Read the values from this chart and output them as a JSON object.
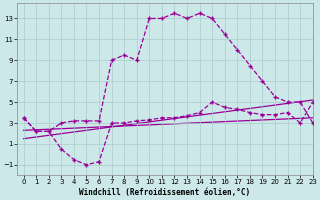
{
  "line1_x": [
    0,
    1,
    2,
    3,
    4,
    5,
    6,
    7,
    8,
    9,
    10,
    11,
    12,
    13,
    14,
    15,
    16,
    17,
    18,
    19,
    20,
    21,
    22,
    23
  ],
  "line1_y": [
    3.5,
    2.2,
    2.2,
    3.0,
    3.2,
    3.2,
    3.2,
    9.0,
    9.5,
    9.0,
    13.0,
    13.0,
    13.5,
    13.0,
    13.5,
    13.0,
    11.5,
    10.0,
    8.5,
    7.0,
    5.5,
    5.0,
    5.0,
    3.0
  ],
  "line2_x": [
    0,
    1,
    2,
    3,
    4,
    5,
    6,
    7,
    8,
    9,
    10,
    11,
    12,
    13,
    14,
    15,
    16,
    17,
    18,
    19,
    20,
    21,
    22,
    23
  ],
  "line2_y": [
    3.5,
    2.2,
    2.2,
    0.5,
    -0.5,
    -1.0,
    -0.7,
    3.0,
    3.0,
    3.2,
    3.3,
    3.5,
    3.5,
    3.7,
    4.0,
    5.0,
    4.5,
    4.3,
    4.0,
    3.8,
    3.8,
    4.0,
    3.0,
    5.0
  ],
  "line3_x": [
    0,
    23
  ],
  "line3_y": [
    1.5,
    5.2
  ],
  "line4_x": [
    0,
    23
  ],
  "line4_y": [
    2.3,
    3.5
  ],
  "color": "#990099",
  "bg_color": "#cce8e8",
  "xlabel": "Windchill (Refroidissement éolien,°C)",
  "xlim": [
    -0.5,
    23
  ],
  "ylim": [
    -2,
    14.5
  ],
  "yticks": [
    -1,
    1,
    3,
    5,
    7,
    9,
    11,
    13
  ],
  "xticks": [
    0,
    1,
    2,
    3,
    4,
    5,
    6,
    7,
    8,
    9,
    10,
    11,
    12,
    13,
    14,
    15,
    16,
    17,
    18,
    19,
    20,
    21,
    22,
    23
  ]
}
